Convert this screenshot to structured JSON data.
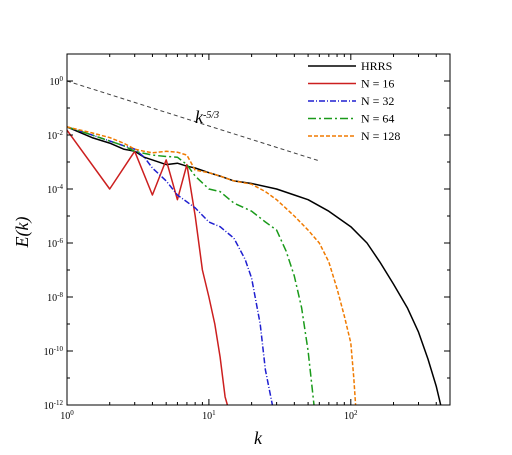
{
  "chart_data": {
    "type": "line",
    "xlabel": "k",
    "ylabel": "E(k)",
    "xscale": "log",
    "yscale": "log",
    "xlim": [
      1,
      500
    ],
    "ylim": [
      1e-12,
      10
    ],
    "grid": false,
    "legend_position": "top-right",
    "x_ticks": [
      {
        "value": 1,
        "base": "10",
        "exp": "0"
      },
      {
        "value": 10,
        "base": "10",
        "exp": "1"
      },
      {
        "value": 100,
        "base": "10",
        "exp": "2"
      }
    ],
    "y_ticks": [
      {
        "value": 1,
        "base": "10",
        "exp": "0"
      },
      {
        "value": 0.01,
        "base": "10",
        "exp": "-2"
      },
      {
        "value": 0.0001,
        "base": "10",
        "exp": "-4"
      },
      {
        "value": 1e-06,
        "base": "10",
        "exp": "-6"
      },
      {
        "value": 1e-08,
        "base": "10",
        "exp": "-8"
      },
      {
        "value": 1e-10,
        "base": "10",
        "exp": "-10"
      },
      {
        "value": 1e-12,
        "base": "10",
        "exp": "-12"
      }
    ],
    "reference_line": {
      "base": "k",
      "exp": "-5/3",
      "color": "#404040",
      "dash": "4,3",
      "points": [
        [
          1,
          1.0
        ],
        [
          60,
          0.0011
        ]
      ]
    },
    "series": [
      {
        "name": "HRRS",
        "color": "#000000",
        "dash": "",
        "points": [
          [
            1,
            0.02
          ],
          [
            1.5,
            0.008
          ],
          [
            2,
            0.005
          ],
          [
            2.5,
            0.003
          ],
          [
            3,
            0.0025
          ],
          [
            3.5,
            0.0015
          ],
          [
            4,
            0.0012
          ],
          [
            5,
            0.0008
          ],
          [
            6,
            0.0009
          ],
          [
            7,
            0.0007
          ],
          [
            8,
            0.0006
          ],
          [
            10,
            0.0004
          ],
          [
            12,
            0.0003
          ],
          [
            15,
            0.0002
          ],
          [
            20,
            0.00016
          ],
          [
            30,
            0.0001
          ],
          [
            40,
            6e-05
          ],
          [
            50,
            4e-05
          ],
          [
            70,
            1.5e-05
          ],
          [
            100,
            4e-06
          ],
          [
            130,
            1e-06
          ],
          [
            160,
            2e-07
          ],
          [
            200,
            3e-08
          ],
          [
            250,
            4e-09
          ],
          [
            300,
            5e-10
          ],
          [
            350,
            5e-11
          ],
          [
            400,
            5e-12
          ],
          [
            430,
            1e-12
          ]
        ]
      },
      {
        "name": "N = 16",
        "color": "#cc1f1f",
        "dash": "",
        "points": [
          [
            1,
            0.015
          ],
          [
            2,
            0.0001
          ],
          [
            3,
            0.0025
          ],
          [
            4,
            6e-05
          ],
          [
            5,
            0.0012
          ],
          [
            6,
            4e-05
          ],
          [
            7,
            0.0008
          ],
          [
            8,
            1e-05
          ],
          [
            9,
            1e-07
          ],
          [
            10,
            1e-08
          ],
          [
            11,
            1e-09
          ],
          [
            12,
            6e-11
          ],
          [
            13,
            2e-12
          ],
          [
            13.5,
            1e-12
          ]
        ]
      },
      {
        "name": "N = 32",
        "color": "#1f1fd0",
        "dash": "6,2,1,2",
        "points": [
          [
            1,
            0.02
          ],
          [
            1.5,
            0.01
          ],
          [
            2,
            0.006
          ],
          [
            2.5,
            0.004
          ],
          [
            3,
            0.003
          ],
          [
            3.5,
            0.0015
          ],
          [
            4,
            0.0006
          ],
          [
            5,
            0.0002
          ],
          [
            6,
            6e-05
          ],
          [
            8,
            2e-05
          ],
          [
            10,
            6e-06
          ],
          [
            12,
            4e-06
          ],
          [
            15,
            1.5e-06
          ],
          [
            18,
            2.5e-07
          ],
          [
            20,
            5e-08
          ],
          [
            23,
            1e-09
          ],
          [
            25,
            2e-11
          ],
          [
            28,
            1e-12
          ]
        ]
      },
      {
        "name": "N = 64",
        "color": "#1a9a1a",
        "dash": "8,3,2,3",
        "points": [
          [
            1,
            0.02
          ],
          [
            1.5,
            0.01
          ],
          [
            2,
            0.006
          ],
          [
            2.5,
            0.004
          ],
          [
            3,
            0.0025
          ],
          [
            4,
            0.0018
          ],
          [
            5,
            0.0016
          ],
          [
            6,
            0.0015
          ],
          [
            7,
            0.0008
          ],
          [
            8,
            0.0003
          ],
          [
            10,
            0.0001
          ],
          [
            12,
            8e-05
          ],
          [
            15,
            3e-05
          ],
          [
            20,
            1.5e-05
          ],
          [
            25,
            6e-06
          ],
          [
            30,
            3e-06
          ],
          [
            35,
            5e-07
          ],
          [
            40,
            6e-08
          ],
          [
            45,
            4e-09
          ],
          [
            50,
            1e-10
          ],
          [
            55,
            1e-12
          ]
        ]
      },
      {
        "name": "N = 128",
        "color": "#f07a00",
        "dash": "4,2",
        "points": [
          [
            1,
            0.02
          ],
          [
            1.5,
            0.012
          ],
          [
            2,
            0.008
          ],
          [
            2.5,
            0.005
          ],
          [
            3,
            0.003
          ],
          [
            3.5,
            0.0025
          ],
          [
            4,
            0.0022
          ],
          [
            5,
            0.0025
          ],
          [
            6,
            0.0023
          ],
          [
            7,
            0.0018
          ],
          [
            8,
            0.0005
          ],
          [
            10,
            0.0004
          ],
          [
            12,
            0.0003
          ],
          [
            15,
            0.0002
          ],
          [
            20,
            0.00015
          ],
          [
            25,
            8e-05
          ],
          [
            30,
            4e-05
          ],
          [
            40,
            1e-05
          ],
          [
            50,
            3e-06
          ],
          [
            60,
            1e-06
          ],
          [
            70,
            2e-07
          ],
          [
            80,
            2e-08
          ],
          [
            90,
            2e-09
          ],
          [
            100,
            2e-10
          ],
          [
            105,
            1e-11
          ],
          [
            108,
            1e-12
          ]
        ]
      }
    ]
  }
}
